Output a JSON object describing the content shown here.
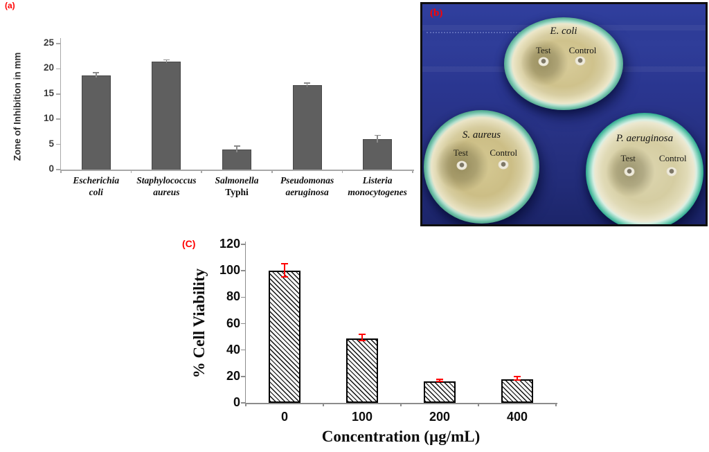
{
  "panels": {
    "a_label": "(a)",
    "b_label": "(b)",
    "c_label": "(C)"
  },
  "chart_data": [
    {
      "panel": "a",
      "type": "bar",
      "ylabel": "Zone of Inhibition in mm",
      "xlabel": "",
      "ylim": [
        0,
        25
      ],
      "yticks": [
        0,
        5,
        10,
        15,
        20,
        25
      ],
      "categories": [
        {
          "line1": "Escherichia",
          "line2": "coli",
          "line2_italic": true
        },
        {
          "line1": "Staphylococcus",
          "line2": "aureus",
          "line2_italic": true
        },
        {
          "line1": "Salmonella",
          "line2": "Typhi",
          "line2_italic": false
        },
        {
          "line1": "Pseudomonas",
          "line2": "aeruginosa",
          "line2_italic": true
        },
        {
          "line1": "Listeria",
          "line2": "monocytogenes",
          "line2_italic": true
        }
      ],
      "values": [
        18.7,
        21.4,
        4.0,
        16.7,
        6.0
      ],
      "errors": [
        0.4,
        0.3,
        0.6,
        0.4,
        0.7
      ],
      "bar_color": "#5f5f5f",
      "error_color": "#8a8a8a",
      "axis_color": "#a8a8a8",
      "grid": false,
      "legend": null
    },
    {
      "panel": "c",
      "type": "bar",
      "ylabel": "% Cell Viability",
      "xlabel": "Concentration (µg/mL)",
      "ylim": [
        0,
        120
      ],
      "yticks": [
        0,
        20,
        40,
        60,
        80,
        100,
        120
      ],
      "categories": [
        "0",
        "100",
        "200",
        "400"
      ],
      "values": [
        100,
        49,
        16.5,
        18
      ],
      "errors": [
        5,
        2.5,
        1,
        1.2
      ],
      "bar_fill": "diagonal-hatch",
      "bar_border_color": "#000000",
      "error_color": "#ff0000",
      "axis_color": "#8c8c8c",
      "grid": false,
      "legend": null
    }
  ],
  "photo_panel": {
    "label": "(b)",
    "cloth_color": "#2a3690",
    "dishes": [
      {
        "name": "E. coli",
        "test_label": "Test",
        "control_label": "Control"
      },
      {
        "name": "S. aureus",
        "test_label": "Test",
        "control_label": "Control"
      },
      {
        "name": "P. aeruginosa",
        "test_label": "Test",
        "control_label": "Control"
      }
    ]
  },
  "colors": {
    "panel_label_red": "#ff0000",
    "bar_gray": "#5f5f5f",
    "error_red": "#ff0000"
  }
}
